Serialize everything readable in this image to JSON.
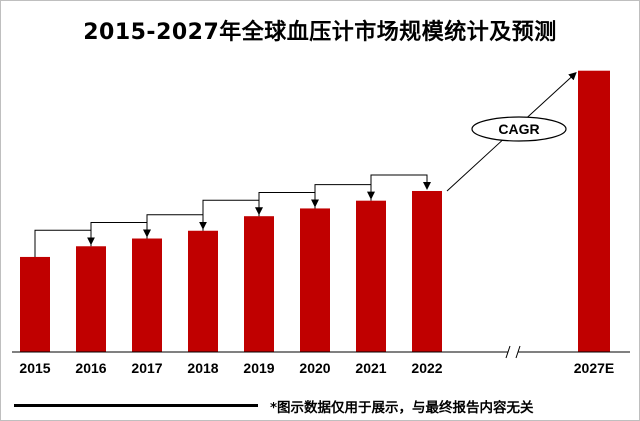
{
  "chart_data": {
    "type": "bar",
    "title": "2015-2027年全球血压计市场规模统计及预测",
    "categories": [
      "2015",
      "2016",
      "2017",
      "2018",
      "2019",
      "2020",
      "2021",
      "2022",
      "2027E"
    ],
    "values": [
      98,
      109,
      117,
      125,
      140,
      148,
      156,
      166,
      290
    ],
    "ylim": [
      0,
      300
    ],
    "xlabel": "",
    "ylabel": "",
    "grid": false,
    "annotation": "CAGR",
    "axis_break_between": [
      "2022",
      "2027E"
    ],
    "bar_color": "#C00000"
  },
  "footnote": "*图示数据仅用于展示，与最终报告内容无关"
}
